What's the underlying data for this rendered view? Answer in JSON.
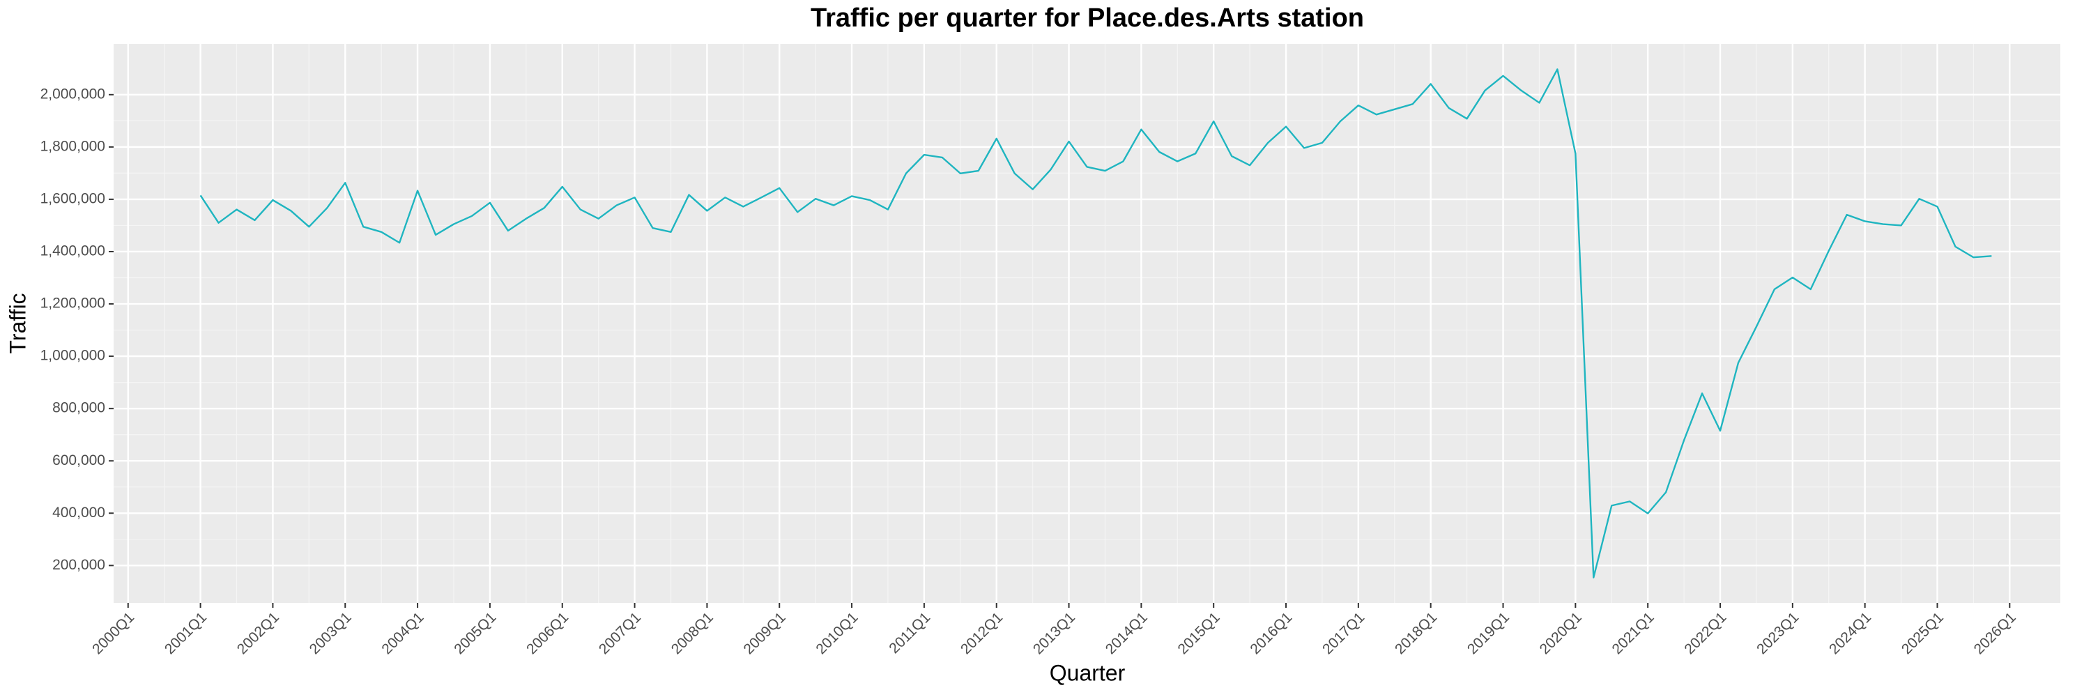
{
  "chart_data": {
    "type": "line",
    "title": "Traffic per quarter for Place.des.Arts station",
    "x_label": "Quarter",
    "y_label": "Traffic",
    "color": "#1fb5c0",
    "grid": true,
    "x": [
      2001,
      2001.25,
      2001.5,
      2001.75,
      2002,
      2002.25,
      2002.5,
      2002.75,
      2003,
      2003.25,
      2003.5,
      2003.75,
      2004,
      2004.25,
      2004.5,
      2004.75,
      2005,
      2005.25,
      2005.5,
      2005.75,
      2006,
      2006.25,
      2006.5,
      2006.75,
      2007,
      2007.25,
      2007.5,
      2007.75,
      2008,
      2008.25,
      2008.5,
      2008.75,
      2009,
      2009.25,
      2009.5,
      2009.75,
      2010,
      2010.25,
      2010.5,
      2010.75,
      2011,
      2011.25,
      2011.5,
      2011.75,
      2012,
      2012.25,
      2012.5,
      2012.75,
      2013,
      2013.25,
      2013.5,
      2013.75,
      2014,
      2014.25,
      2014.5,
      2014.75,
      2015,
      2015.25,
      2015.5,
      2015.75,
      2016,
      2016.25,
      2016.5,
      2016.75,
      2017,
      2017.25,
      2017.5,
      2017.75,
      2018,
      2018.25,
      2018.5,
      2018.75,
      2019,
      2019.25,
      2019.5,
      2019.75,
      2020,
      2020.25,
      2020.5,
      2020.75,
      2021,
      2021.25,
      2021.5,
      2021.75,
      2022,
      2022.25,
      2022.5,
      2022.75,
      2023,
      2023.25,
      2023.5,
      2023.75,
      2024,
      2024.25,
      2024.5,
      2024.75,
      2025,
      2025.25,
      2025.5,
      2025.75
    ],
    "values": [
      1615000,
      1510000,
      1561000,
      1520000,
      1597000,
      1556000,
      1495000,
      1567000,
      1663000,
      1495000,
      1475000,
      1434000,
      1633000,
      1464000,
      1505000,
      1536000,
      1587000,
      1480000,
      1526000,
      1567000,
      1648000,
      1561000,
      1526000,
      1577000,
      1607000,
      1490000,
      1475000,
      1617000,
      1556000,
      1607000,
      1572000,
      1607000,
      1643000,
      1551000,
      1602000,
      1577000,
      1612000,
      1597000,
      1561000,
      1699000,
      1770000,
      1760000,
      1699000,
      1709000,
      1832000,
      1699000,
      1638000,
      1714000,
      1821000,
      1724000,
      1709000,
      1745000,
      1867000,
      1781000,
      1745000,
      1775000,
      1898000,
      1765000,
      1730000,
      1816000,
      1878000,
      1796000,
      1816000,
      1898000,
      1959000,
      1924000,
      1944000,
      1964000,
      2041000,
      1949000,
      1908000,
      2016000,
      2072000,
      2016000,
      1969000,
      2097000,
      1775000,
      154000,
      429000,
      445000,
      399000,
      480000,
      679000,
      858000,
      715000,
      975000,
      1113000,
      1256000,
      1301000,
      1256000,
      1403000,
      1541000,
      1516000,
      1505000,
      1500000,
      1602000,
      1572000,
      1419000,
      1378000,
      1383000
    ],
    "xlim": [
      1999.8,
      2026.7
    ],
    "xticks": [
      {
        "value": 2000,
        "label": "2000Q1"
      },
      {
        "value": 2001,
        "label": "2001Q1"
      },
      {
        "value": 2002,
        "label": "2002Q1"
      },
      {
        "value": 2003,
        "label": "2003Q1"
      },
      {
        "value": 2004,
        "label": "2004Q1"
      },
      {
        "value": 2005,
        "label": "2005Q1"
      },
      {
        "value": 2006,
        "label": "2006Q1"
      },
      {
        "value": 2007,
        "label": "2007Q1"
      },
      {
        "value": 2008,
        "label": "2008Q1"
      },
      {
        "value": 2009,
        "label": "2009Q1"
      },
      {
        "value": 2010,
        "label": "2010Q1"
      },
      {
        "value": 2011,
        "label": "2011Q1"
      },
      {
        "value": 2012,
        "label": "2012Q1"
      },
      {
        "value": 2013,
        "label": "2013Q1"
      },
      {
        "value": 2014,
        "label": "2014Q1"
      },
      {
        "value": 2015,
        "label": "2015Q1"
      },
      {
        "value": 2016,
        "label": "2016Q1"
      },
      {
        "value": 2017,
        "label": "2017Q1"
      },
      {
        "value": 2018,
        "label": "2018Q1"
      },
      {
        "value": 2019,
        "label": "2019Q1"
      },
      {
        "value": 2020,
        "label": "2020Q1"
      },
      {
        "value": 2021,
        "label": "2021Q1"
      },
      {
        "value": 2022,
        "label": "2022Q1"
      },
      {
        "value": 2023,
        "label": "2023Q1"
      },
      {
        "value": 2024,
        "label": "2024Q1"
      },
      {
        "value": 2025,
        "label": "2025Q1"
      },
      {
        "value": 2026,
        "label": "2026Q1"
      }
    ],
    "ylim": [
      57000,
      2194000
    ],
    "yticks": [
      {
        "value": 200000,
        "label": "200,000"
      },
      {
        "value": 400000,
        "label": "400,000"
      },
      {
        "value": 600000,
        "label": "600,000"
      },
      {
        "value": 800000,
        "label": "800,000"
      },
      {
        "value": 1000000,
        "label": "1,000,000"
      },
      {
        "value": 1200000,
        "label": "1,200,000"
      },
      {
        "value": 1400000,
        "label": "1,400,000"
      },
      {
        "value": 1600000,
        "label": "1,600,000"
      },
      {
        "value": 1800000,
        "label": "1,800,000"
      },
      {
        "value": 2000000,
        "label": "2,000,000"
      }
    ]
  }
}
